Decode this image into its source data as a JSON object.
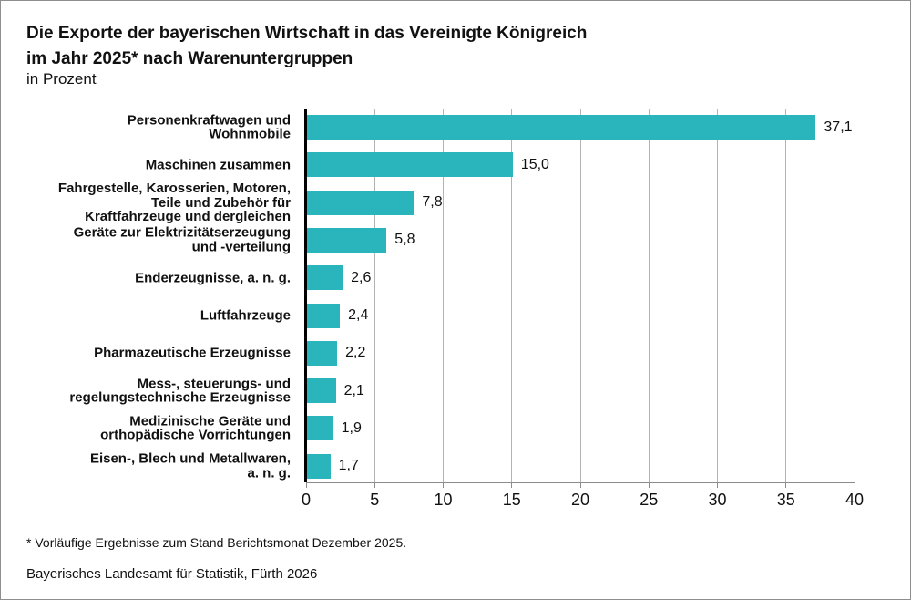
{
  "header": {
    "title_line1": "Die Exporte der bayerischen Wirtschaft in das Vereinigte Königreich",
    "title_line2": "im Jahr 2025* nach Warenuntergruppen",
    "subtitle": "in Prozent"
  },
  "chart_data": {
    "type": "bar",
    "orientation": "horizontal",
    "title": "Die Exporte der bayerischen Wirtschaft in das Vereinigte Königreich im Jahr 2025* nach Warenuntergruppen",
    "subtitle": "in Prozent",
    "categories": [
      "Personenkraftwagen und Wohnmobile",
      "Maschinen zusammen",
      "Fahrgestelle, Karosserien, Motoren, Teile und Zubehör für Kraftfahrzeuge und dergleichen",
      "Geräte zur Elektrizitätserzeugung und -verteilung",
      "Enderzeugnisse, a. n. g.",
      "Luftfahrzeuge",
      "Pharmazeutische Erzeugnisse",
      "Mess-, steuerungs- und regelungstechnische Erzeugnisse",
      "Medizinische Geräte und orthopädische Vorrichtungen",
      "Eisen-, Blech und Metallwaren, a. n. g."
    ],
    "category_lines": [
      [
        "Personenkraftwagen und",
        "Wohnmobile"
      ],
      [
        "Maschinen zusammen"
      ],
      [
        "Fahrgestelle, Karosserien, Motoren,",
        "Teile und Zubehör für",
        "Kraftfahrzeuge und dergleichen"
      ],
      [
        "Geräte zur Elektrizitätserzeugung",
        "und -verteilung"
      ],
      [
        "Enderzeugnisse, a. n. g."
      ],
      [
        "Luftfahrzeuge"
      ],
      [
        "Pharmazeutische Erzeugnisse"
      ],
      [
        "Mess-, steuerungs- und",
        "regelungstechnische Erzeugnisse"
      ],
      [
        "Medizinische Geräte und",
        "orthopädische Vorrichtungen"
      ],
      [
        "Eisen-, Blech und Metallwaren,",
        "a. n. g."
      ]
    ],
    "values": [
      37.1,
      15.0,
      7.8,
      5.8,
      2.6,
      2.4,
      2.2,
      2.1,
      1.9,
      1.7
    ],
    "value_labels": [
      "37,1",
      "15,0",
      "7,8",
      "5,8",
      "2,6",
      "2,4",
      "2,2",
      "2,1",
      "1,9",
      "1,7"
    ],
    "xlabel": "",
    "ylabel": "",
    "xlim": [
      0,
      40
    ],
    "x_ticks": [
      0,
      5,
      10,
      15,
      20,
      25,
      30,
      35,
      40
    ],
    "grid": "vertical gridlines at each x tick",
    "legend": "none",
    "bar_color": "#2ab4bb"
  },
  "footnote": "* Vorläufige Ergebnisse zum Stand Berichtsmonat Dezember 2025.",
  "source": "Bayerisches Landesamt für Statistik, Fürth 2026",
  "colors": {
    "bar": "#2ab4bb",
    "grid": "#b3b3b3",
    "axis_gray": "#8c8c8c",
    "axis_black": "#000000",
    "text": "#111111",
    "source_text": "#9a9a9a",
    "frame_border": "#8e8e8e"
  }
}
